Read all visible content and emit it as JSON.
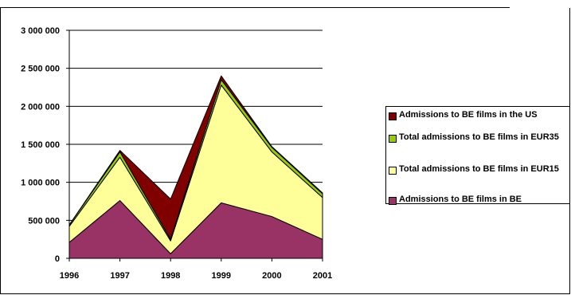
{
  "chart_data": {
    "type": "area",
    "stacked": true,
    "x": [
      "1996",
      "1997",
      "1998",
      "1999",
      "2000",
      "2001"
    ],
    "y_ticks": [
      "3 000 000",
      "2 500 000",
      "2 000 000",
      "1 500 000",
      "1 000 000",
      "500 000",
      "0"
    ],
    "ylim": [
      0,
      3000000
    ],
    "grid": true,
    "legend_position": "right",
    "series": [
      {
        "name": "Admissions to BE films in BE",
        "color": "#993366",
        "values": [
          210000,
          760000,
          60000,
          730000,
          550000,
          250000
        ]
      },
      {
        "name": "Total admissions to BE films in EUR15",
        "color": "#ffff99",
        "values": [
          210000,
          570000,
          170000,
          1550000,
          850000,
          550000
        ]
      },
      {
        "name": "Total admissions to BE films in EUR35",
        "color": "#99cc00",
        "values": [
          20000,
          70000,
          20000,
          70000,
          60000,
          50000
        ]
      },
      {
        "name": "Admissions to BE films in the US",
        "color": "#800000",
        "values": [
          0,
          20000,
          530000,
          50000,
          10000,
          10000
        ]
      }
    ]
  }
}
